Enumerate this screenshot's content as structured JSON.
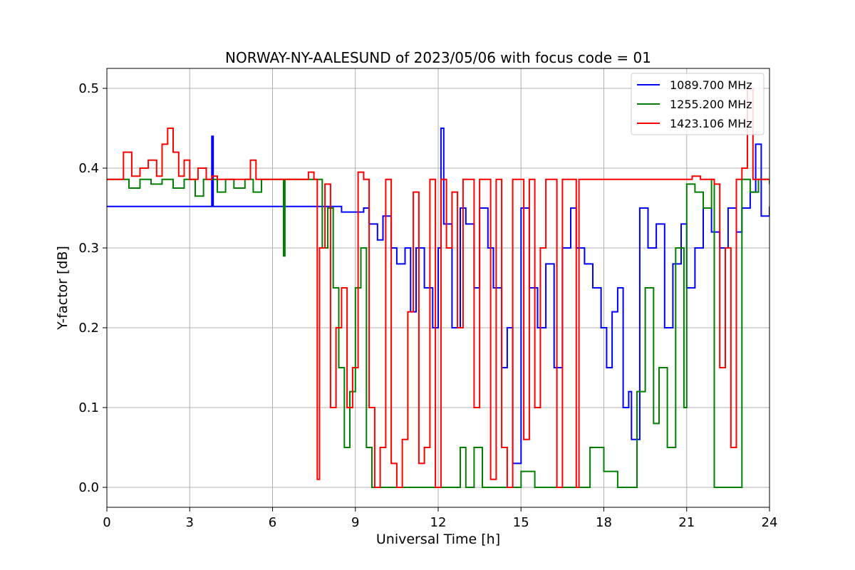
{
  "chart_data": {
    "type": "line",
    "title": "NORWAY-NY-AALESUND of 2023/05/06 with focus code = 01",
    "xlabel": "Universal Time [h]",
    "ylabel": "Y-factor [dB]",
    "xlim": [
      0,
      24
    ],
    "ylim": [
      -0.025,
      0.525
    ],
    "xticks": [
      0,
      3,
      6,
      9,
      12,
      15,
      18,
      21,
      24
    ],
    "xtick_labels": [
      "0",
      "3",
      "6",
      "9",
      "12",
      "15",
      "18",
      "21",
      "24"
    ],
    "yticks": [
      0.0,
      0.1,
      0.2,
      0.3,
      0.4,
      0.5
    ],
    "ytick_labels": [
      "0.0",
      "0.1",
      "0.2",
      "0.3",
      "0.4",
      "0.5"
    ],
    "grid": true,
    "legend_position": "top-right",
    "series": [
      {
        "name": "1089.700 MHz",
        "color": "#0000ff",
        "x": [
          0,
          3.7,
          3.8,
          3.85,
          3.9,
          7.6,
          8.5,
          9.0,
          9.3,
          9.5,
          9.8,
          10.0,
          10.3,
          10.5,
          10.8,
          11.0,
          11.2,
          11.5,
          11.8,
          12.0,
          12.1,
          12.2,
          12.5,
          12.8,
          13.0,
          13.3,
          13.5,
          13.8,
          14.0,
          14.3,
          14.5,
          14.7,
          15.0,
          15.3,
          15.6,
          15.9,
          16.2,
          16.5,
          16.8,
          17.0,
          17.3,
          17.6,
          17.9,
          18.1,
          18.3,
          18.5,
          18.7,
          18.9,
          19.0,
          19.3,
          19.6,
          19.9,
          20.2,
          20.5,
          20.8,
          21.0,
          21.3,
          21.6,
          21.9,
          22.2,
          22.5,
          22.8,
          23.0,
          23.3,
          23.5,
          23.7,
          24.0
        ],
        "values": [
          0.352,
          0.352,
          0.44,
          0.352,
          0.352,
          0.352,
          0.345,
          0.345,
          0.35,
          0.33,
          0.31,
          0.34,
          0.3,
          0.28,
          0.3,
          0.22,
          0.3,
          0.25,
          0.2,
          0.3,
          0.45,
          0.33,
          0.2,
          0.35,
          0.33,
          0.25,
          0.35,
          0.3,
          0.25,
          0.15,
          0.2,
          0.03,
          0.35,
          0.25,
          0.2,
          0.28,
          0.15,
          0.3,
          0.35,
          0.3,
          0.28,
          0.25,
          0.2,
          0.15,
          0.22,
          0.25,
          0.1,
          0.12,
          0.06,
          0.35,
          0.3,
          0.33,
          0.2,
          0.28,
          0.33,
          0.25,
          0.3,
          0.35,
          0.32,
          0.3,
          0.35,
          0.32,
          0.35,
          0.37,
          0.43,
          0.34,
          0.352
        ]
      },
      {
        "name": "1255.200 MHz",
        "color": "#008000",
        "x": [
          0,
          0.5,
          0.8,
          1.2,
          1.6,
          2.0,
          2.4,
          2.8,
          3.2,
          3.5,
          4.0,
          4.3,
          4.6,
          5.0,
          5.3,
          5.6,
          6.0,
          6.35,
          6.4,
          6.45,
          7.6,
          7.8,
          8.0,
          8.2,
          8.4,
          8.6,
          8.8,
          9.0,
          9.2,
          9.4,
          9.6,
          10.0,
          10.5,
          11.0,
          11.5,
          12.0,
          12.5,
          12.8,
          13.0,
          13.3,
          13.6,
          14.0,
          14.5,
          15.0,
          15.5,
          16.0,
          16.5,
          17.0,
          17.5,
          18.0,
          18.5,
          19.0,
          19.2,
          19.5,
          19.8,
          20.0,
          20.3,
          20.6,
          20.9,
          21.0,
          21.3,
          21.6,
          21.9,
          22.0,
          22.3,
          22.8,
          23.0,
          23.3,
          23.6,
          24.0
        ],
        "values": [
          0.386,
          0.386,
          0.375,
          0.386,
          0.38,
          0.386,
          0.375,
          0.386,
          0.365,
          0.386,
          0.37,
          0.386,
          0.375,
          0.386,
          0.37,
          0.386,
          0.386,
          0.386,
          0.29,
          0.386,
          0.386,
          0.3,
          0.35,
          0.25,
          0.15,
          0.05,
          0.12,
          0.25,
          0.3,
          0.05,
          0.0,
          0.0,
          0.0,
          0.0,
          0.0,
          0.0,
          0.0,
          0.05,
          0.0,
          0.05,
          0.0,
          0.0,
          0.0,
          0.02,
          0.0,
          0.0,
          0.0,
          0.0,
          0.05,
          0.02,
          0.0,
          0.0,
          0.12,
          0.25,
          0.08,
          0.15,
          0.05,
          0.3,
          0.1,
          0.38,
          0.37,
          0.35,
          0.386,
          0.0,
          0.0,
          0.0,
          0.386,
          0.37,
          0.386,
          0.38
        ]
      },
      {
        "name": "1423.106 MHz",
        "color": "#ff0000",
        "x": [
          0,
          0.3,
          0.6,
          0.9,
          1.2,
          1.5,
          1.8,
          2.0,
          2.2,
          2.4,
          2.6,
          2.8,
          3.0,
          3.3,
          3.6,
          3.8,
          4.0,
          5.0,
          5.2,
          5.4,
          7.0,
          7.3,
          7.5,
          7.58,
          7.62,
          7.7,
          7.9,
          8.1,
          8.3,
          8.5,
          8.7,
          8.9,
          9.1,
          9.3,
          9.5,
          9.7,
          9.9,
          10.1,
          10.3,
          10.5,
          10.7,
          10.9,
          11.1,
          11.3,
          11.5,
          11.7,
          11.9,
          12.1,
          12.3,
          12.5,
          12.7,
          12.9,
          13.1,
          13.3,
          13.5,
          13.7,
          13.9,
          14.1,
          14.3,
          14.5,
          14.7,
          14.9,
          15.1,
          15.3,
          15.5,
          15.7,
          15.9,
          16.1,
          16.3,
          16.5,
          16.8,
          17.0,
          17.1,
          17.5,
          18.0,
          18.5,
          19.0,
          19.5,
          20.0,
          20.5,
          21.0,
          21.2,
          21.5,
          21.8,
          22.0,
          22.2,
          22.4,
          22.6,
          22.8,
          23.0,
          23.2,
          23.4,
          23.6,
          24.0
        ],
        "values": [
          0.386,
          0.386,
          0.42,
          0.39,
          0.4,
          0.41,
          0.39,
          0.43,
          0.45,
          0.42,
          0.39,
          0.41,
          0.386,
          0.4,
          0.386,
          0.39,
          0.386,
          0.386,
          0.41,
          0.386,
          0.386,
          0.395,
          0.386,
          0.386,
          0.01,
          0.3,
          0.38,
          0.1,
          0.2,
          0.25,
          0.1,
          0.15,
          0.395,
          0.386,
          0.1,
          0.0,
          0.05,
          0.386,
          0.03,
          0.0,
          0.06,
          0.22,
          0.37,
          0.03,
          0.05,
          0.386,
          0.0,
          0.386,
          0.3,
          0.37,
          0.2,
          0.386,
          0.386,
          0.1,
          0.386,
          0.386,
          0.01,
          0.386,
          0.05,
          0.0,
          0.386,
          0.386,
          0.06,
          0.386,
          0.1,
          0.3,
          0.386,
          0.386,
          0.0,
          0.386,
          0.386,
          0.0,
          0.386,
          0.386,
          0.386,
          0.386,
          0.386,
          0.386,
          0.386,
          0.386,
          0.386,
          0.39,
          0.386,
          0.386,
          0.38,
          0.15,
          0.3,
          0.05,
          0.386,
          0.4,
          0.5,
          0.386,
          0.386,
          0.386
        ]
      }
    ]
  }
}
